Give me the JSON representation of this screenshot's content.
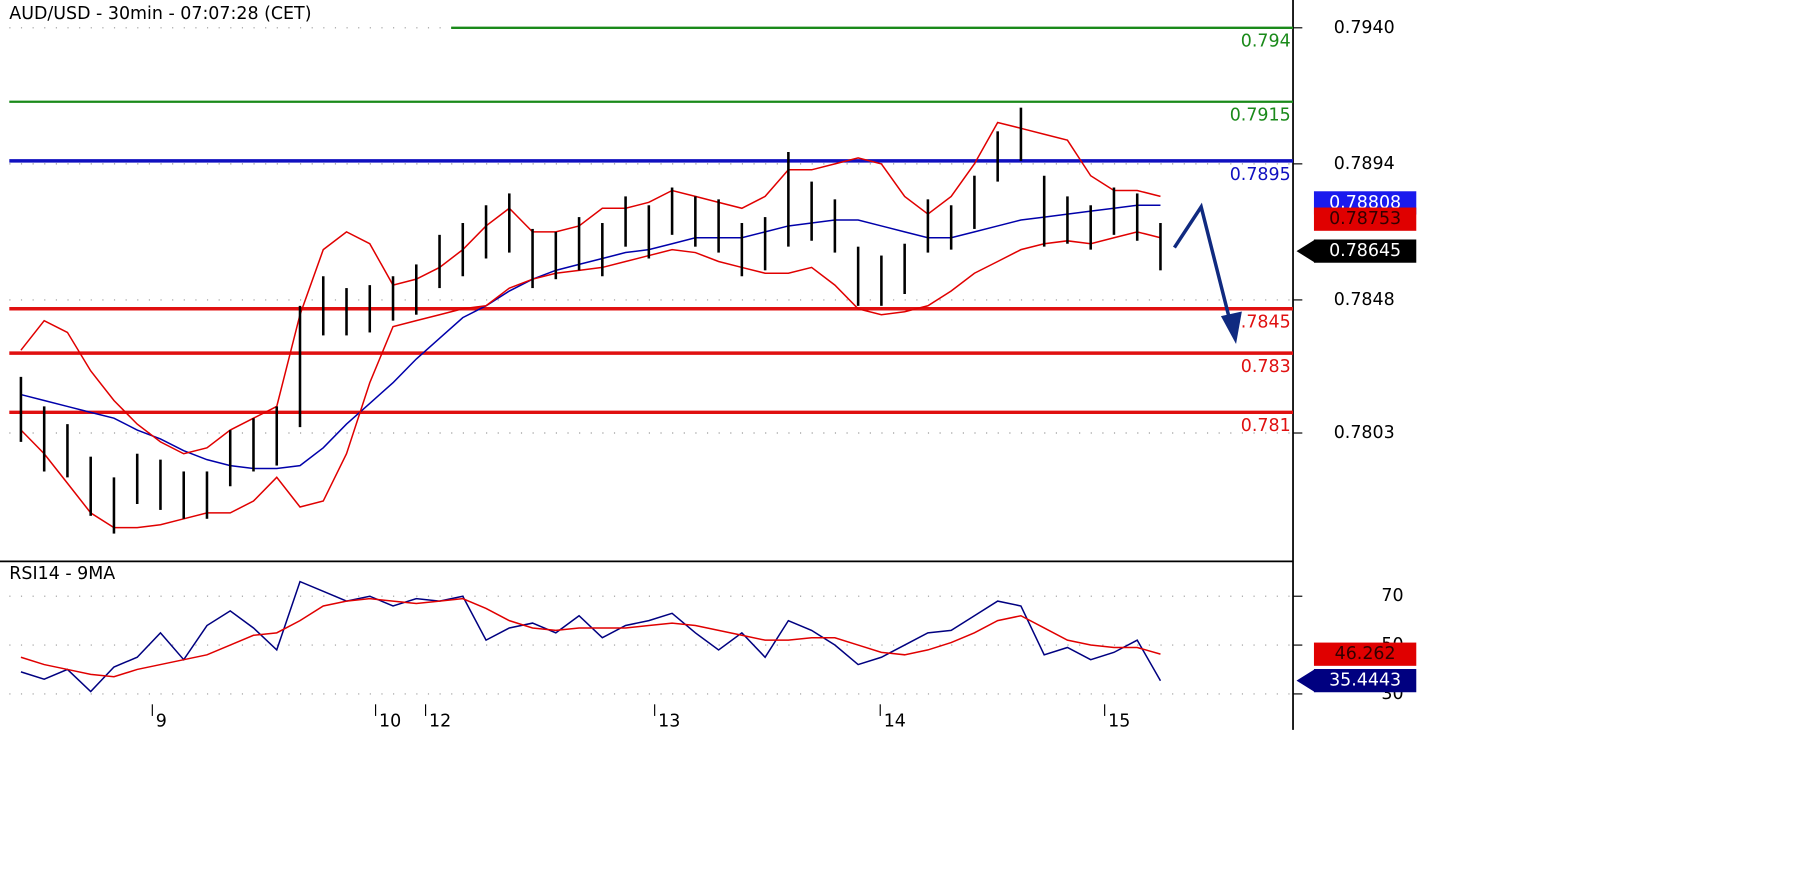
{
  "chart_data": {
    "type": "ohlc",
    "title": "AUD/USD - 30min - 07:07:28 (CET)",
    "xlim": [
      0,
      55.2
    ],
    "xticks": [
      {
        "value": 6.15,
        "label": "9"
      },
      {
        "value": 15.75,
        "label": "10"
      },
      {
        "value": 17.9,
        "label": "12"
      },
      {
        "value": 27.75,
        "label": "13"
      },
      {
        "value": 37.45,
        "label": "14"
      },
      {
        "value": 47.1,
        "label": "15"
      }
    ],
    "ylim": [
      0.776,
      0.79494
    ],
    "yticks": [
      {
        "value": 0.794,
        "label": "0.7940"
      },
      0.7894,
      0.7848,
      0.7803
    ],
    "grid": true,
    "high": [
      0.7822,
      0.7812,
      0.7806,
      0.7795,
      0.7788,
      0.7796,
      0.7794,
      0.779,
      0.779,
      0.7804,
      0.7808,
      0.7812,
      0.7846,
      0.7856,
      0.7852,
      0.7853,
      0.7856,
      0.786,
      0.787,
      0.7874,
      0.788,
      0.7884,
      0.7872,
      0.7871,
      0.7876,
      0.7874,
      0.7883,
      0.788,
      0.7886,
      0.7883,
      0.7882,
      0.7874,
      0.7876,
      0.7898,
      0.7888,
      0.7882,
      0.7866,
      0.7863,
      0.7867,
      0.7882,
      0.788,
      0.789,
      0.7905,
      0.7913,
      0.789,
      0.7883,
      0.788,
      0.7886,
      0.7884,
      0.7874
    ],
    "low": [
      0.78,
      0.779,
      0.7788,
      0.7775,
      0.7769,
      0.7779,
      0.7777,
      0.7774,
      0.7774,
      0.7785,
      0.779,
      0.7792,
      0.7805,
      0.7836,
      0.7836,
      0.7837,
      0.7841,
      0.7843,
      0.7852,
      0.7856,
      0.7862,
      0.7864,
      0.7852,
      0.7855,
      0.7858,
      0.7856,
      0.7866,
      0.7862,
      0.787,
      0.7866,
      0.7864,
      0.7856,
      0.7858,
      0.7866,
      0.7868,
      0.7864,
      0.7846,
      0.7846,
      0.785,
      0.7864,
      0.7865,
      0.7872,
      0.7888,
      0.7895,
      0.7866,
      0.7867,
      0.7865,
      0.787,
      0.7868,
      0.7858
    ],
    "bar_color": "#000000",
    "overlays": [
      {
        "color": "#0000aa",
        "values": [
          0.7816,
          0.7814,
          0.7812,
          0.781,
          0.7808,
          0.7804,
          0.7801,
          0.7797,
          0.7794,
          0.7792,
          0.7791,
          0.7791,
          0.7792,
          0.7798,
          0.7806,
          0.7813,
          0.782,
          0.7828,
          0.7835,
          0.7842,
          0.7846,
          0.7851,
          0.7855,
          0.7858,
          0.786,
          0.7862,
          0.7864,
          0.7865,
          0.7867,
          0.7869,
          0.7869,
          0.7869,
          0.7871,
          0.7873,
          0.7874,
          0.7875,
          0.7875,
          0.7873,
          0.7871,
          0.7869,
          0.7869,
          0.7871,
          0.7873,
          0.7875,
          0.7876,
          0.7877,
          0.7878,
          0.7879,
          0.788,
          0.788
        ]
      },
      {
        "color": "#e00000",
        "values": [
          0.7831,
          0.7841,
          0.7837,
          0.7824,
          0.7814,
          0.7806,
          0.78,
          0.7796,
          0.7798,
          0.7804,
          0.7808,
          0.7812,
          0.7843,
          0.7865,
          0.7871,
          0.7867,
          0.7853,
          0.7855,
          0.7859,
          0.7865,
          0.7873,
          0.7879,
          0.7871,
          0.7871,
          0.7873,
          0.7879,
          0.7879,
          0.7881,
          0.7885,
          0.7883,
          0.7881,
          0.7879,
          0.7883,
          0.7892,
          0.7892,
          0.7894,
          0.7896,
          0.7894,
          0.7883,
          0.7877,
          0.7883,
          0.7894,
          0.7908,
          0.7906,
          0.7904,
          0.7902,
          0.789,
          0.7885,
          0.7885,
          0.7883
        ]
      },
      {
        "color": "#e00000",
        "values": [
          0.7804,
          0.7796,
          0.7786,
          0.7776,
          0.7771,
          0.7771,
          0.7772,
          0.7774,
          0.7776,
          0.7776,
          0.778,
          0.7788,
          0.7778,
          0.778,
          0.7796,
          0.782,
          0.7839,
          0.7841,
          0.7843,
          0.7845,
          0.7846,
          0.7852,
          0.7855,
          0.7857,
          0.7858,
          0.7859,
          0.7861,
          0.7863,
          0.7865,
          0.7864,
          0.7861,
          0.7859,
          0.7857,
          0.7857,
          0.7859,
          0.7853,
          0.7845,
          0.7843,
          0.7844,
          0.7846,
          0.7851,
          0.7857,
          0.7861,
          0.7865,
          0.7867,
          0.7868,
          0.7867,
          0.7869,
          0.7871,
          0.7869
        ]
      }
    ],
    "levels": [
      {
        "value": 0.794,
        "color": "#1a8a1a",
        "start": 19
      },
      {
        "value": 0.7915,
        "color": "#1a8a1a"
      },
      {
        "value": 0.7895,
        "color": "#1010c0"
      },
      {
        "value": 0.7845,
        "color": "#e01010"
      },
      {
        "value": 0.783,
        "color": "#e01010"
      },
      {
        "value": 0.781,
        "color": "#e01010"
      }
    ],
    "price_tags": [
      {
        "value": 0.78808,
        "color": "#1a1aee"
      },
      {
        "value": 0.78753,
        "color": "#e00000"
      },
      {
        "value": 0.78645,
        "color": "#000000",
        "marker": "arrow"
      }
    ],
    "rsi": {
      "title": "RSI14 - 9MA",
      "ylim": [
        28.6,
        83.8
      ],
      "yticks": [
        70,
        50,
        30
      ],
      "series": [
        {
          "color": "#000080",
          "values": [
            39,
            36,
            40,
            31,
            41,
            45,
            55,
            44,
            58,
            64,
            57,
            48,
            76,
            72,
            68,
            70,
            66,
            69,
            68,
            70,
            52,
            57,
            59,
            55,
            62,
            53,
            58,
            60,
            63,
            55,
            48,
            55,
            45,
            60,
            56,
            50,
            42,
            45,
            50,
            55,
            56,
            62,
            68,
            66,
            46,
            49,
            44,
            47,
            52,
            35.4
          ]
        },
        {
          "color": "#e00000",
          "values": [
            45,
            42,
            40,
            38,
            37,
            40,
            42,
            44,
            46,
            50,
            54,
            55,
            60,
            66,
            68,
            69,
            68,
            67,
            68,
            69,
            65,
            60,
            57,
            56,
            57,
            57,
            57,
            58,
            59,
            58,
            56,
            54,
            52,
            52,
            53,
            53,
            50,
            47,
            46,
            48,
            51,
            55,
            60,
            62,
            57,
            52,
            50,
            49,
            49,
            46.3
          ]
        }
      ],
      "tags": [
        {
          "value": 46.262,
          "color": "#e00000"
        },
        {
          "value": 35.4443,
          "color": "#000080",
          "marker": "arrow"
        }
      ]
    }
  }
}
